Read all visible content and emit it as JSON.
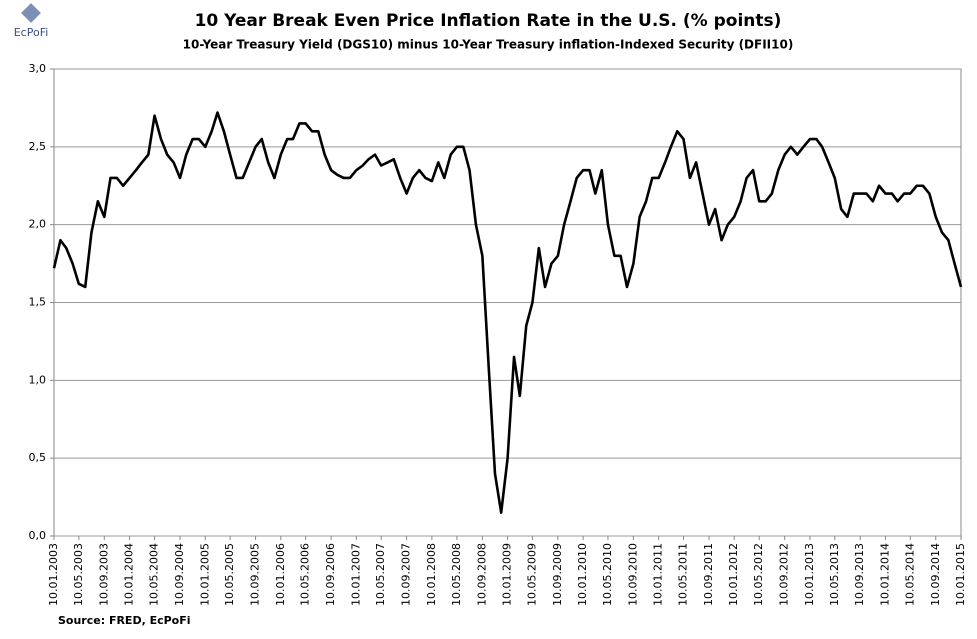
{
  "chart_data": {
    "type": "line",
    "title": "10 Year Break Even Price Inflation Rate in the U.S. (% points)",
    "subtitle": "10-Year Treasury Yield (DGS10) minus 10-Year Treasury inflation-Indexed Security (DFII10)",
    "source": "Source: FRED,  EcPoFi",
    "logo_text": "EcPoFi",
    "x": [
      "10.01.2003",
      "10.02.2003",
      "10.03.2003",
      "10.04.2003",
      "10.05.2003",
      "10.06.2003",
      "10.07.2003",
      "10.08.2003",
      "10.09.2003",
      "10.10.2003",
      "10.11.2003",
      "10.12.2003",
      "10.01.2004",
      "10.02.2004",
      "10.03.2004",
      "10.04.2004",
      "10.05.2004",
      "10.06.2004",
      "10.07.2004",
      "10.08.2004",
      "10.09.2004",
      "10.10.2004",
      "10.11.2004",
      "10.12.2004",
      "10.01.2005",
      "10.02.2005",
      "10.03.2005",
      "10.04.2005",
      "10.05.2005",
      "10.06.2005",
      "10.07.2005",
      "10.08.2005",
      "10.09.2005",
      "10.10.2005",
      "10.11.2005",
      "10.12.2005",
      "10.01.2006",
      "10.02.2006",
      "10.03.2006",
      "10.04.2006",
      "10.05.2006",
      "10.06.2006",
      "10.07.2006",
      "10.08.2006",
      "10.09.2006",
      "10.10.2006",
      "10.11.2006",
      "10.12.2006",
      "10.01.2007",
      "10.02.2007",
      "10.03.2007",
      "10.04.2007",
      "10.05.2007",
      "10.06.2007",
      "10.07.2007",
      "10.08.2007",
      "10.09.2007",
      "10.10.2007",
      "10.11.2007",
      "10.12.2007",
      "10.01.2008",
      "10.02.2008",
      "10.03.2008",
      "10.04.2008",
      "10.05.2008",
      "10.06.2008",
      "10.07.2008",
      "10.08.2008",
      "10.09.2008",
      "10.10.2008",
      "10.11.2008",
      "10.12.2008",
      "10.01.2009",
      "10.02.2009",
      "10.03.2009",
      "10.04.2009",
      "10.05.2009",
      "10.06.2009",
      "10.07.2009",
      "10.08.2009",
      "10.09.2009",
      "10.10.2009",
      "10.11.2009",
      "10.12.2009",
      "10.01.2010",
      "10.02.2010",
      "10.03.2010",
      "10.04.2010",
      "10.05.2010",
      "10.06.2010",
      "10.07.2010",
      "10.08.2010",
      "10.09.2010",
      "10.10.2010",
      "10.11.2010",
      "10.12.2010",
      "10.01.2011",
      "10.02.2011",
      "10.03.2011",
      "10.04.2011",
      "10.05.2011",
      "10.06.2011",
      "10.07.2011",
      "10.08.2011",
      "10.09.2011",
      "10.10.2011",
      "10.11.2011",
      "10.12.2011",
      "10.01.2012",
      "10.02.2012",
      "10.03.2012",
      "10.04.2012",
      "10.05.2012",
      "10.06.2012",
      "10.07.2012",
      "10.08.2012",
      "10.09.2012",
      "10.10.2012",
      "10.11.2012",
      "10.12.2012",
      "10.01.2013",
      "10.02.2013",
      "10.03.2013",
      "10.04.2013",
      "10.05.2013",
      "10.06.2013",
      "10.07.2013",
      "10.08.2013",
      "10.09.2013",
      "10.10.2013",
      "10.11.2013",
      "10.12.2013",
      "10.01.2014",
      "10.02.2014",
      "10.03.2014",
      "10.04.2014",
      "10.05.2014",
      "10.06.2014",
      "10.07.2014",
      "10.08.2014",
      "10.09.2014",
      "10.10.2014",
      "10.11.2014",
      "10.12.2014",
      "10.01.2015"
    ],
    "series": [
      {
        "color": "#000000",
        "values": [
          1.72,
          1.9,
          1.85,
          1.75,
          1.62,
          1.6,
          1.95,
          2.15,
          2.05,
          2.3,
          2.3,
          2.25,
          2.3,
          2.35,
          2.4,
          2.45,
          2.7,
          2.55,
          2.45,
          2.4,
          2.3,
          2.45,
          2.55,
          2.55,
          2.5,
          2.6,
          2.72,
          2.6,
          2.45,
          2.3,
          2.3,
          2.4,
          2.5,
          2.55,
          2.4,
          2.3,
          2.45,
          2.55,
          2.55,
          2.65,
          2.65,
          2.6,
          2.6,
          2.45,
          2.35,
          2.32,
          2.3,
          2.3,
          2.35,
          2.38,
          2.42,
          2.45,
          2.38,
          2.4,
          2.42,
          2.3,
          2.2,
          2.3,
          2.35,
          2.3,
          2.28,
          2.4,
          2.3,
          2.45,
          2.5,
          2.5,
          2.35,
          2.0,
          1.8,
          1.1,
          0.4,
          0.15,
          0.5,
          1.15,
          0.9,
          1.35,
          1.5,
          1.85,
          1.6,
          1.75,
          1.8,
          2.0,
          2.15,
          2.3,
          2.35,
          2.35,
          2.2,
          2.35,
          2.0,
          1.8,
          1.8,
          1.6,
          1.75,
          2.05,
          2.15,
          2.3,
          2.3,
          2.4,
          2.5,
          2.6,
          2.55,
          2.3,
          2.4,
          2.2,
          2.0,
          2.1,
          1.9,
          2.0,
          2.05,
          2.15,
          2.3,
          2.35,
          2.15,
          2.15,
          2.2,
          2.35,
          2.45,
          2.5,
          2.45,
          2.5,
          2.55,
          2.55,
          2.5,
          2.4,
          2.3,
          2.1,
          2.05,
          2.2,
          2.2,
          2.2,
          2.15,
          2.25,
          2.2,
          2.2,
          2.15,
          2.2,
          2.2,
          2.25,
          2.25,
          2.2,
          2.05,
          1.95,
          1.9,
          1.75,
          1.6
        ]
      }
    ],
    "xlim": [
      "10.01.2003",
      "10.01.2015"
    ],
    "xticks": [
      "10.01.2003",
      "10.05.2003",
      "10.09.2003",
      "10.01.2004",
      "10.05.2004",
      "10.09.2004",
      "10.01.2005",
      "10.05.2005",
      "10.09.2005",
      "10.01.2006",
      "10.05.2006",
      "10.09.2006",
      "10.01.2007",
      "10.05.2007",
      "10.09.2007",
      "10.01.2008",
      "10.05.2008",
      "10.09.2008",
      "10.01.2009",
      "10.05.2009",
      "10.09.2009",
      "10.01.2010",
      "10.05.2010",
      "10.09.2010",
      "10.01.2011",
      "10.05.2011",
      "10.09.2011",
      "10.01.2012",
      "10.05.2012",
      "10.09.2012",
      "10.01.2013",
      "10.05.2013",
      "10.09.2013",
      "10.01.2014",
      "10.05.2014",
      "10.09.2014",
      "10.01.2015"
    ],
    "ylim": [
      0,
      3
    ],
    "yticks": [
      {
        "value": 0,
        "label": "0,0"
      },
      {
        "value": 0.5,
        "label": "0,5"
      },
      {
        "value": 1,
        "label": "1,0"
      },
      {
        "value": 1.5,
        "label": "1,5"
      },
      {
        "value": 2,
        "label": "2,0"
      },
      {
        "value": 2.5,
        "label": "2,5"
      },
      {
        "value": 3,
        "label": "3,0"
      }
    ],
    "grid": true
  }
}
